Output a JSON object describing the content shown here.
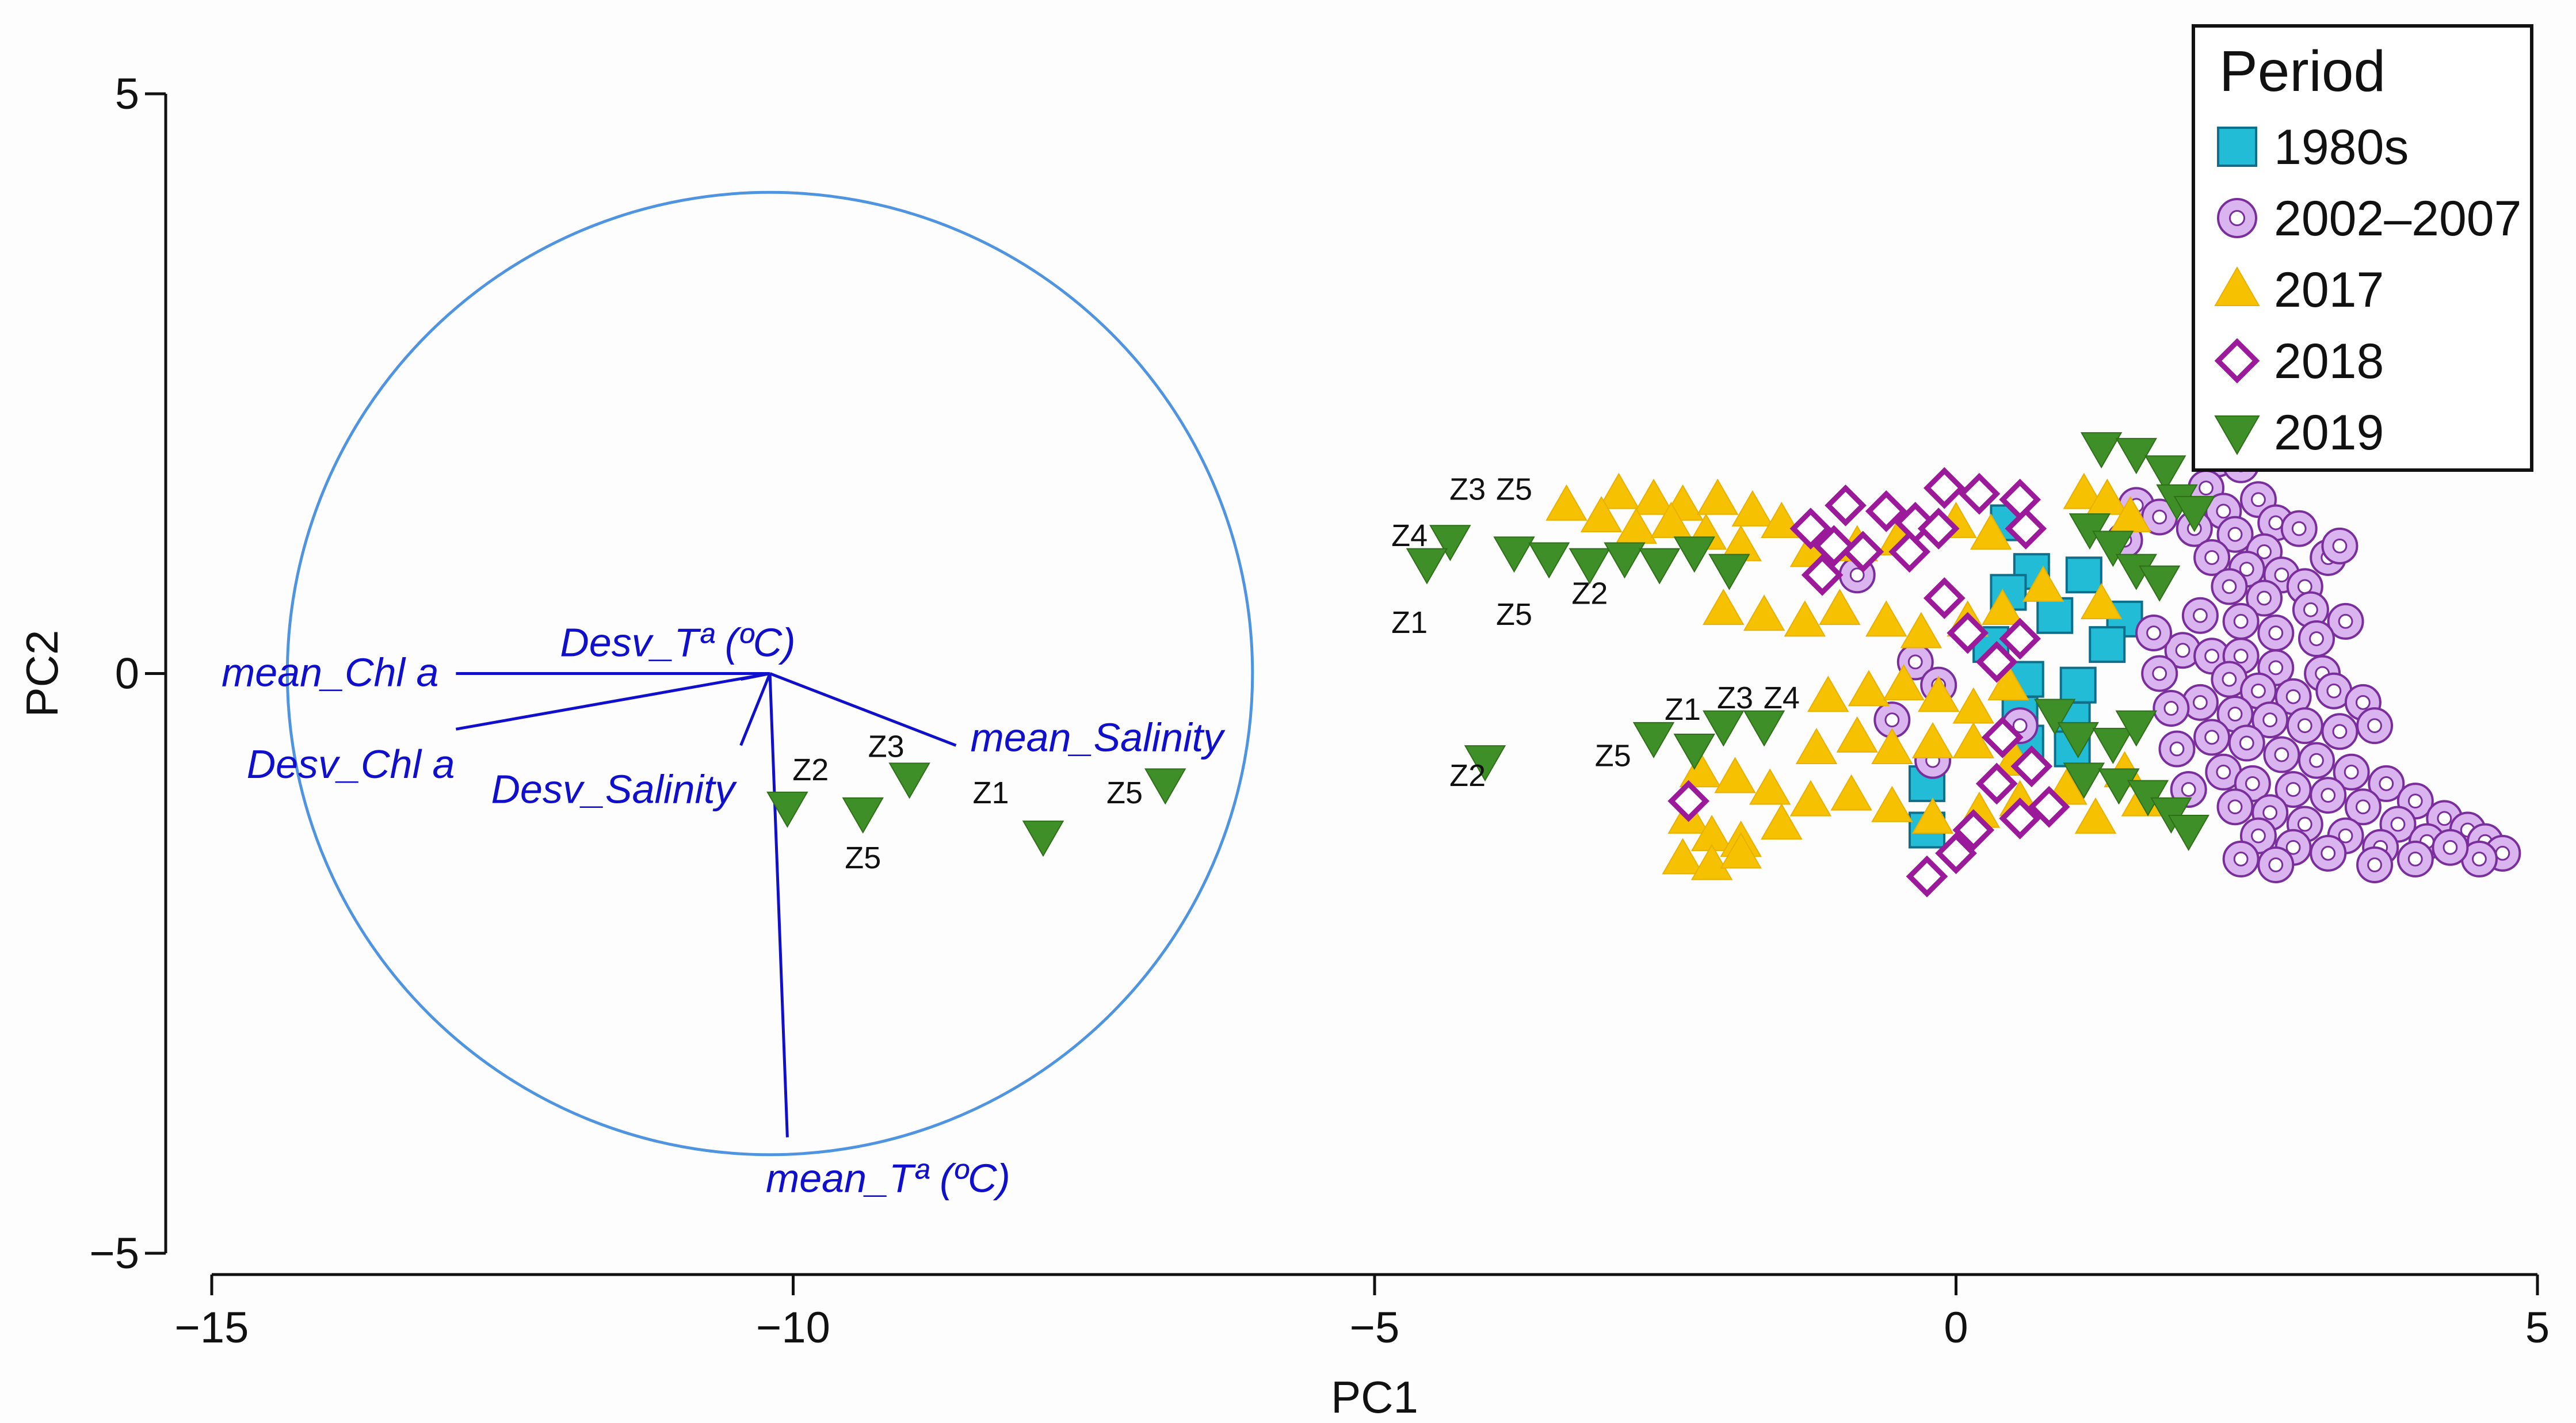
{
  "chart_data": {
    "type": "scatter",
    "subtype": "PCA biplot",
    "xlabel": "PC1",
    "ylabel": "PC2",
    "xlim": [
      -15,
      5
    ],
    "ylim": [
      -5,
      5
    ],
    "xticks": [
      -15,
      -10,
      -5,
      0,
      5
    ],
    "yticks": [
      -5,
      0,
      5
    ],
    "xtick_labels": [
      "−15",
      "−10",
      "−5",
      "0",
      "5"
    ],
    "ytick_labels": [
      "−5",
      "0",
      "5"
    ],
    "legend": {
      "title": "Period",
      "position": "top-right",
      "entries": [
        {
          "name": "1980s",
          "marker": "square",
          "color": "#22bcd6"
        },
        {
          "name": "2002–2007",
          "marker": "ring",
          "color": "#a066c8"
        },
        {
          "name": "2017",
          "marker": "triangle-up",
          "color": "#f6c100"
        },
        {
          "name": "2018",
          "marker": "diamond",
          "color": "#9a1a9a"
        },
        {
          "name": "2019",
          "marker": "triangle-down",
          "color": "#3f8f28"
        }
      ]
    },
    "correlation_circle": {
      "center": [
        -10.2,
        0
      ],
      "radius": 4.15,
      "color": "#4f94e0"
    },
    "vectors": [
      {
        "label": "mean_Chl a",
        "end": [
          -12.9,
          0
        ],
        "color": "#1010cc"
      },
      {
        "label": "Desv_Chl a",
        "end": [
          -12.9,
          -0.48
        ],
        "color": "#1010cc"
      },
      {
        "label": "Desv_Tª (ºC)",
        "end": [
          -10.45,
          -0.05
        ],
        "color": "#1010cc"
      },
      {
        "label": "Desv_Salinity",
        "end": [
          -10.45,
          -0.62
        ],
        "color": "#1010cc"
      },
      {
        "label": "mean_Salinity",
        "end": [
          -8.6,
          -0.62
        ],
        "color": "#1010cc"
      },
      {
        "label": "mean_Tª (ºC)",
        "end": [
          -10.05,
          -4.0
        ],
        "color": "#1010cc"
      }
    ],
    "point_labels": [
      {
        "text": "Z2",
        "x": -9.85,
        "y": -0.92
      },
      {
        "text": "Z3",
        "x": -9.2,
        "y": -0.72
      },
      {
        "text": "Z5",
        "x": -9.4,
        "y": -1.68
      },
      {
        "text": "Z1",
        "x": -8.3,
        "y": -1.12
      },
      {
        "text": "Z5",
        "x": -7.15,
        "y": -1.12
      },
      {
        "text": "Z3",
        "x": -4.2,
        "y": 1.5
      },
      {
        "text": "Z5",
        "x": -3.8,
        "y": 1.5
      },
      {
        "text": "Z4",
        "x": -4.7,
        "y": 1.1
      },
      {
        "text": "Z2",
        "x": -3.15,
        "y": 0.6
      },
      {
        "text": "Z1",
        "x": -4.7,
        "y": 0.35
      },
      {
        "text": "Z5",
        "x": -3.8,
        "y": 0.42
      },
      {
        "text": "Z2",
        "x": -4.2,
        "y": -0.97
      },
      {
        "text": "Z5",
        "x": -2.95,
        "y": -0.8
      },
      {
        "text": "Z1",
        "x": -2.35,
        "y": -0.4
      },
      {
        "text": "Z3",
        "x": -1.9,
        "y": -0.3
      },
      {
        "text": "Z4",
        "x": -1.5,
        "y": -0.3
      }
    ],
    "series": [
      {
        "name": "1980s",
        "points": [
          [
            0.45,
            1.3
          ],
          [
            0.65,
            0.88
          ],
          [
            1.1,
            0.85
          ],
          [
            0.45,
            0.7
          ],
          [
            0.85,
            0.5
          ],
          [
            1.45,
            0.47
          ],
          [
            0.3,
            0.25
          ],
          [
            1.3,
            0.25
          ],
          [
            0.6,
            -0.05
          ],
          [
            1.05,
            -0.1
          ],
          [
            0.55,
            -0.35
          ],
          [
            1.0,
            -0.4
          ],
          [
            0.6,
            -0.6
          ],
          [
            1.0,
            -0.65
          ],
          [
            -0.25,
            -0.95
          ],
          [
            -0.25,
            -1.35
          ]
        ]
      },
      {
        "name": "2002–2007",
        "points": [
          [
            2.25,
            1.85
          ],
          [
            2.45,
            1.8
          ],
          [
            2.15,
            1.6
          ],
          [
            2.6,
            1.5
          ],
          [
            2.3,
            1.4
          ],
          [
            2.75,
            1.3
          ],
          [
            2.4,
            1.2
          ],
          [
            2.95,
            1.25
          ],
          [
            2.65,
            1.05
          ],
          [
            3.2,
            1.0
          ],
          [
            3.3,
            1.1
          ],
          [
            2.05,
            1.25
          ],
          [
            2.2,
            1.0
          ],
          [
            2.5,
            0.9
          ],
          [
            2.8,
            0.85
          ],
          [
            3.0,
            0.75
          ],
          [
            2.35,
            0.75
          ],
          [
            2.65,
            0.65
          ],
          [
            3.05,
            0.55
          ],
          [
            3.35,
            0.45
          ],
          [
            2.1,
            0.5
          ],
          [
            2.45,
            0.45
          ],
          [
            2.75,
            0.35
          ],
          [
            3.1,
            0.3
          ],
          [
            1.95,
            0.2
          ],
          [
            2.2,
            0.15
          ],
          [
            2.45,
            0.15
          ],
          [
            2.75,
            0.05
          ],
          [
            3.15,
            0.0
          ],
          [
            2.35,
            -0.05
          ],
          [
            2.6,
            -0.15
          ],
          [
            2.9,
            -0.2
          ],
          [
            3.25,
            -0.15
          ],
          [
            3.5,
            -0.25
          ],
          [
            2.1,
            -0.25
          ],
          [
            2.4,
            -0.35
          ],
          [
            2.7,
            -0.4
          ],
          [
            3.0,
            -0.45
          ],
          [
            3.3,
            -0.5
          ],
          [
            3.6,
            -0.45
          ],
          [
            2.2,
            -0.55
          ],
          [
            2.5,
            -0.6
          ],
          [
            2.8,
            -0.7
          ],
          [
            3.1,
            -0.75
          ],
          [
            3.4,
            -0.85
          ],
          [
            3.7,
            -0.95
          ],
          [
            3.95,
            -1.1
          ],
          [
            4.2,
            -1.25
          ],
          [
            4.4,
            -1.35
          ],
          [
            4.55,
            -1.45
          ],
          [
            2.3,
            -0.85
          ],
          [
            2.55,
            -0.95
          ],
          [
            2.9,
            -1.0
          ],
          [
            3.2,
            -1.05
          ],
          [
            3.5,
            -1.15
          ],
          [
            3.8,
            -1.3
          ],
          [
            4.05,
            -1.45
          ],
          [
            2.4,
            -1.15
          ],
          [
            2.7,
            -1.2
          ],
          [
            3.0,
            -1.3
          ],
          [
            3.35,
            -1.4
          ],
          [
            3.65,
            -1.5
          ],
          [
            2.6,
            -1.4
          ],
          [
            2.9,
            -1.5
          ],
          [
            3.2,
            -1.55
          ],
          [
            2.45,
            -1.6
          ],
          [
            2.75,
            -1.65
          ],
          [
            4.7,
            -1.55
          ],
          [
            4.5,
            -1.6
          ],
          [
            4.25,
            -1.5
          ],
          [
            3.95,
            -1.6
          ],
          [
            3.6,
            -1.65
          ],
          [
            2.0,
            -1.0
          ],
          [
            1.9,
            -0.65
          ],
          [
            1.85,
            -0.3
          ],
          [
            1.75,
            0.0
          ],
          [
            1.7,
            0.35
          ],
          [
            -0.35,
            0.1
          ],
          [
            -0.15,
            -0.1
          ],
          [
            1.55,
            1.45
          ],
          [
            1.75,
            1.35
          ],
          [
            1.45,
            1.15
          ],
          [
            -0.85,
            0.85
          ],
          [
            -0.55,
            -0.4
          ],
          [
            -0.2,
            -0.75
          ],
          [
            0.55,
            -0.45
          ]
        ]
      },
      {
        "name": "2017",
        "points": [
          [
            -3.35,
            1.45
          ],
          [
            -2.9,
            1.55
          ],
          [
            -2.6,
            1.5
          ],
          [
            -2.35,
            1.45
          ],
          [
            -2.05,
            1.5
          ],
          [
            -1.75,
            1.4
          ],
          [
            -1.5,
            1.3
          ],
          [
            -3.05,
            1.35
          ],
          [
            -2.75,
            1.25
          ],
          [
            -2.45,
            1.3
          ],
          [
            -2.15,
            1.2
          ],
          [
            -1.85,
            1.1
          ],
          [
            -1.25,
            1.05
          ],
          [
            -0.85,
            1.1
          ],
          [
            -0.5,
            1.15
          ],
          [
            0.0,
            1.3
          ],
          [
            0.3,
            1.2
          ],
          [
            -2.0,
            0.55
          ],
          [
            -1.65,
            0.5
          ],
          [
            -1.3,
            0.45
          ],
          [
            -1.0,
            0.55
          ],
          [
            -0.6,
            0.45
          ],
          [
            -0.3,
            0.35
          ],
          [
            0.1,
            0.45
          ],
          [
            0.4,
            0.55
          ],
          [
            -1.1,
            -0.2
          ],
          [
            -0.75,
            -0.15
          ],
          [
            -0.45,
            -0.1
          ],
          [
            -0.15,
            -0.2
          ],
          [
            0.15,
            -0.3
          ],
          [
            0.45,
            -0.1
          ],
          [
            -1.2,
            -0.65
          ],
          [
            -0.85,
            -0.55
          ],
          [
            -0.55,
            -0.65
          ],
          [
            -0.2,
            -0.6
          ],
          [
            0.15,
            -0.6
          ],
          [
            0.5,
            -0.75
          ],
          [
            -2.2,
            -0.85
          ],
          [
            -1.9,
            -0.9
          ],
          [
            -1.6,
            -1.0
          ],
          [
            -1.25,
            -1.1
          ],
          [
            -0.9,
            -1.05
          ],
          [
            -0.55,
            -1.15
          ],
          [
            -0.2,
            -1.25
          ],
          [
            0.2,
            -1.2
          ],
          [
            0.55,
            -1.1
          ],
          [
            -2.3,
            -1.25
          ],
          [
            -2.1,
            -1.4
          ],
          [
            -1.85,
            -1.45
          ],
          [
            -2.35,
            -1.6
          ],
          [
            -2.1,
            -1.65
          ],
          [
            -1.85,
            -1.55
          ],
          [
            -1.5,
            -1.3
          ],
          [
            1.1,
            1.55
          ],
          [
            1.3,
            1.5
          ],
          [
            1.5,
            1.35
          ],
          [
            1.25,
            0.6
          ],
          [
            0.75,
            0.75
          ],
          [
            1.45,
            -0.85
          ],
          [
            1.6,
            -1.1
          ],
          [
            1.2,
            -1.25
          ],
          [
            0.95,
            -1.0
          ]
        ]
      },
      {
        "name": "2018",
        "points": [
          [
            -0.1,
            1.6
          ],
          [
            0.2,
            1.55
          ],
          [
            0.55,
            1.5
          ],
          [
            -0.95,
            1.45
          ],
          [
            -0.6,
            1.4
          ],
          [
            -1.25,
            1.25
          ],
          [
            -0.35,
            1.3
          ],
          [
            -0.15,
            1.25
          ],
          [
            -1.05,
            1.1
          ],
          [
            -0.8,
            1.05
          ],
          [
            -0.4,
            1.05
          ],
          [
            -1.15,
            0.85
          ],
          [
            -0.1,
            0.65
          ],
          [
            0.1,
            0.35
          ],
          [
            0.35,
            0.1
          ],
          [
            0.55,
            0.3
          ],
          [
            0.4,
            -0.55
          ],
          [
            0.65,
            -0.8
          ],
          [
            0.35,
            -0.95
          ],
          [
            0.8,
            -1.15
          ],
          [
            0.55,
            -1.25
          ],
          [
            0.15,
            -1.35
          ],
          [
            -2.3,
            -1.1
          ],
          [
            0.0,
            -1.55
          ],
          [
            -0.25,
            -1.75
          ],
          [
            0.6,
            1.25
          ]
        ]
      },
      {
        "name": "2019",
        "points": [
          [
            1.25,
            1.95
          ],
          [
            1.55,
            1.9
          ],
          [
            1.8,
            1.75
          ],
          [
            1.9,
            1.5
          ],
          [
            2.05,
            1.4
          ],
          [
            1.15,
            1.25
          ],
          [
            1.35,
            1.1
          ],
          [
            1.55,
            0.9
          ],
          [
            1.75,
            0.8
          ],
          [
            0.85,
            -0.35
          ],
          [
            1.05,
            -0.55
          ],
          [
            1.35,
            -0.6
          ],
          [
            1.55,
            -0.45
          ],
          [
            1.1,
            -0.9
          ],
          [
            1.4,
            -0.95
          ],
          [
            1.65,
            -1.05
          ],
          [
            1.85,
            -1.2
          ],
          [
            2.0,
            -1.35
          ],
          [
            -3.8,
            1.05
          ],
          [
            -3.5,
            1.0
          ],
          [
            -3.15,
            0.95
          ],
          [
            -2.85,
            1.0
          ],
          [
            -2.55,
            0.95
          ],
          [
            -2.25,
            1.05
          ],
          [
            -1.95,
            0.9
          ],
          [
            -4.35,
            1.15
          ],
          [
            -4.55,
            0.95
          ],
          [
            -4.05,
            -0.75
          ],
          [
            -2.6,
            -0.55
          ],
          [
            -2.25,
            -0.65
          ],
          [
            -2.0,
            -0.45
          ],
          [
            -1.65,
            -0.45
          ]
        ]
      }
    ],
    "biplot_scores": [
      {
        "x": -10.05,
        "y": -1.15
      },
      {
        "x": -9.4,
        "y": -1.2
      },
      {
        "x": -9.0,
        "y": -0.9
      },
      {
        "x": -7.85,
        "y": -1.4
      },
      {
        "x": -6.8,
        "y": -0.95
      }
    ]
  }
}
